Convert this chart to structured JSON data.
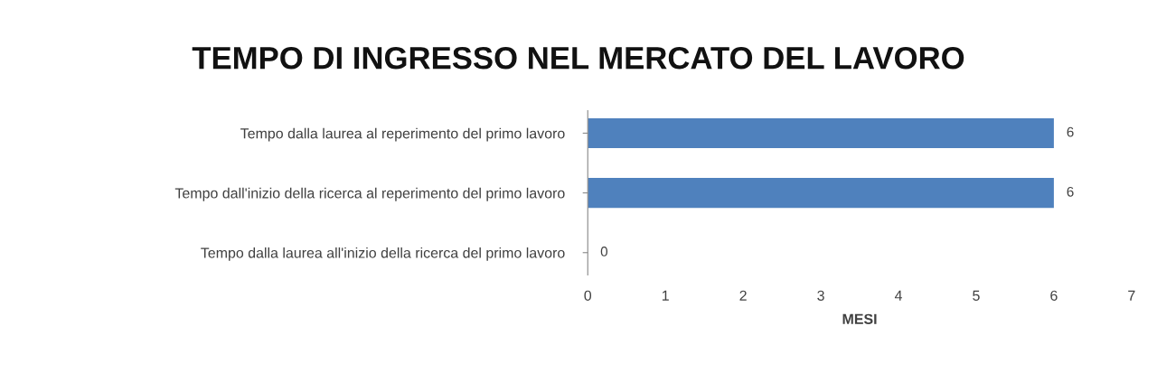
{
  "chart_data": {
    "type": "bar",
    "orientation": "horizontal",
    "title": "TEMPO DI INGRESSO NEL MERCATO DEL LAVORO",
    "xlabel": "MESI",
    "categories": [
      "Tempo dalla laurea al reperimento del primo lavoro",
      "Tempo dall'inizio della ricerca al reperimento del primo lavoro",
      "Tempo dalla laurea all'inizio della ricerca del primo lavoro"
    ],
    "values": [
      6,
      6,
      0
    ],
    "color": "#4f81bd",
    "data_labels": true,
    "xlim": [
      0,
      7
    ],
    "xticks": [
      0,
      1,
      2,
      3,
      4,
      5,
      6,
      7
    ],
    "grid": false,
    "legend": false
  }
}
